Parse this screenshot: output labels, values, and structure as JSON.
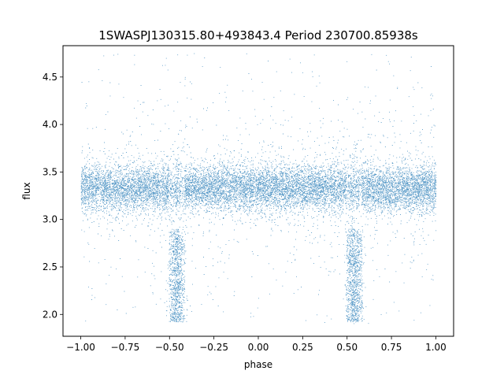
{
  "chart_data": {
    "type": "scatter",
    "title": "1SWASPJ130315.80+493843.4 Period 230700.85938s",
    "xlabel": "phase",
    "ylabel": "flux",
    "xlim": [
      -1.1,
      1.1
    ],
    "ylim": [
      1.77,
      4.83
    ],
    "x_ticks": [
      -1.0,
      -0.75,
      -0.5,
      -0.25,
      0.0,
      0.25,
      0.5,
      0.75,
      1.0
    ],
    "x_tick_labels": [
      "−1.00",
      "−0.75",
      "−0.50",
      "−0.25",
      "0.00",
      "0.25",
      "0.50",
      "0.75",
      "1.00"
    ],
    "y_ticks": [
      2.0,
      2.5,
      3.0,
      3.5,
      4.0,
      4.5
    ],
    "y_tick_labels": [
      "2.0",
      "2.5",
      "3.0",
      "3.5",
      "4.0",
      "4.5"
    ],
    "grid": false,
    "legend": "none",
    "marker_color": "#1f77b4",
    "phase_range": [
      -1.0,
      1.0
    ],
    "baseline_flux": 3.33,
    "baseline_scatter": 0.12,
    "eclipse_phases": [
      -0.46,
      0.54
    ],
    "eclipse_min_flux": 1.92,
    "eclipse_upper_flux": 2.85,
    "sparse_outlier_range": [
      1.9,
      4.75
    ],
    "total_points": 15000
  }
}
